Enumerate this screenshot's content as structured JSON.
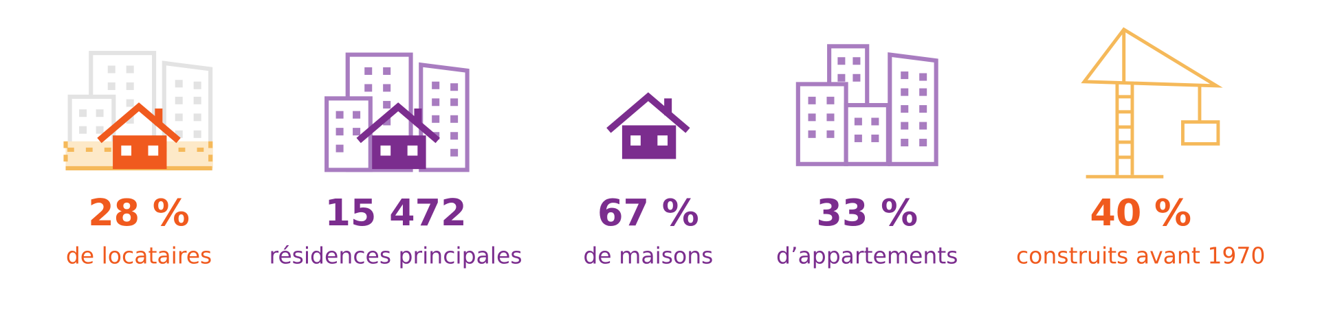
{
  "stats": [
    {
      "value": "28 %",
      "label": "de locataires"
    },
    {
      "value": "15 472",
      "label": "résidences principales"
    },
    {
      "value": "67 %",
      "label": "de maisons"
    },
    {
      "value": "33 %",
      "label": "d’appartements"
    },
    {
      "value": "40 %",
      "label": "construits avant 1970"
    }
  ]
}
